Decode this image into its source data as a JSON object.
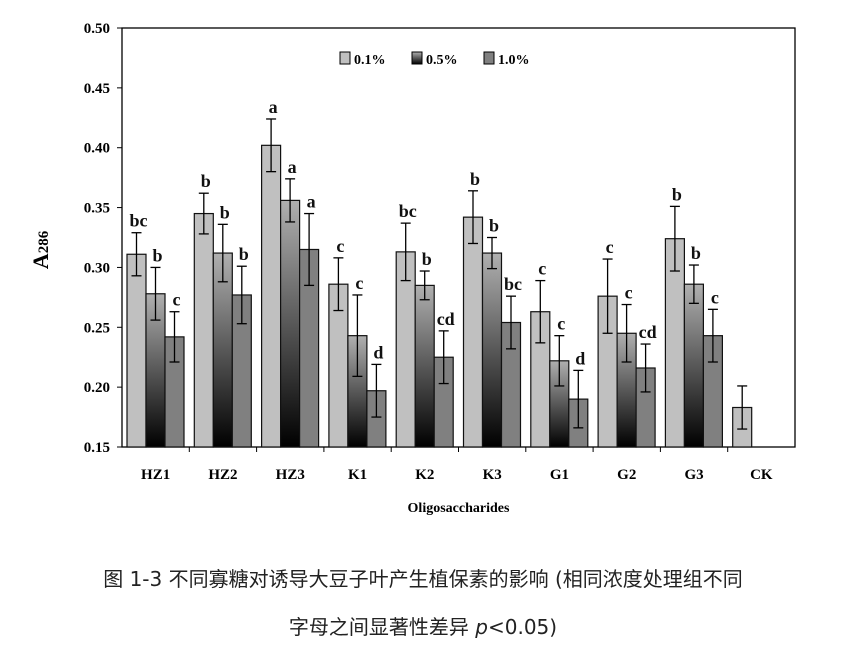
{
  "chart_data": {
    "type": "bar",
    "title": "",
    "xlabel": "Oligosaccharides",
    "ylabel": "A",
    "ylabel_sub": "286",
    "ylim": [
      0.15,
      0.5
    ],
    "yticks": [
      "0.15",
      "0.20",
      "0.25",
      "0.30",
      "0.35",
      "0.40",
      "0.45",
      "0.50"
    ],
    "grid": false,
    "legend_position": "top-center",
    "categories": [
      "HZ1",
      "HZ2",
      "HZ3",
      "K1",
      "K2",
      "K3",
      "G1",
      "G2",
      "G3",
      "CK"
    ],
    "series": [
      {
        "name": "0.1%",
        "color": "#c0c0c0",
        "values": [
          0.311,
          0.345,
          0.402,
          0.286,
          0.313,
          0.342,
          0.263,
          0.276,
          0.324,
          0.183
        ],
        "errors": [
          0.018,
          0.017,
          0.022,
          0.022,
          0.024,
          0.022,
          0.026,
          0.031,
          0.027,
          0.018
        ],
        "labels": [
          "bc",
          "b",
          "a",
          "c",
          "bc",
          "b",
          "c",
          "c",
          "b",
          ""
        ]
      },
      {
        "name": "0.5%",
        "color": "gradient",
        "values": [
          0.278,
          0.312,
          0.356,
          0.243,
          0.285,
          0.312,
          0.222,
          0.245,
          0.286,
          null
        ],
        "errors": [
          0.022,
          0.024,
          0.018,
          0.034,
          0.012,
          0.013,
          0.021,
          0.024,
          0.016,
          null
        ],
        "labels": [
          "b",
          "b",
          "a",
          "c",
          "b",
          "b",
          "c",
          "c",
          "b",
          ""
        ]
      },
      {
        "name": "1.0%",
        "color": "#808080",
        "values": [
          0.242,
          0.277,
          0.315,
          0.197,
          0.225,
          0.254,
          0.19,
          0.216,
          0.243,
          null
        ],
        "errors": [
          0.021,
          0.024,
          0.03,
          0.022,
          0.022,
          0.022,
          0.024,
          0.02,
          0.022,
          null
        ],
        "labels": [
          "c",
          "b",
          "a",
          "d",
          "cd",
          "bc",
          "d",
          "cd",
          "c",
          ""
        ]
      }
    ]
  },
  "caption": {
    "line1": "图 1-3  不同寡糖对诱导大豆子叶产生植保素的影响 (相同浓度处理组不同",
    "line2_prefix": "字母之间显著性差异 ",
    "line2_p": "p",
    "line2_suffix": "<0.05)"
  }
}
